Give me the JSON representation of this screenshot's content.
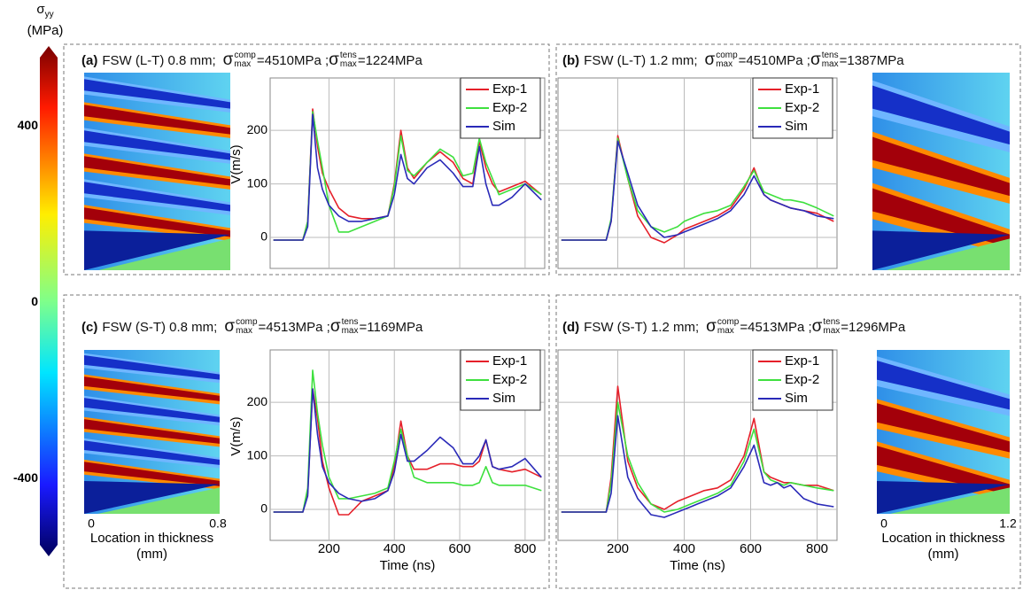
{
  "colorbar": {
    "symbol": "σ",
    "subscript": "yy",
    "unit": "(MPa)",
    "lim": [
      -550,
      555
    ],
    "ticks": [
      400,
      0,
      -400
    ]
  },
  "symbols": {
    "sigma": "σ",
    "comp": "comp",
    "tens": "tens",
    "max": "max"
  },
  "chart_data": [
    {
      "type": "line",
      "panel_label": "(a)",
      "title": "FSW (L-T) 0.8 mm;",
      "comp_value": "=4510MPa ;",
      "tens_value": "=1224MPa",
      "ylabel": "V(m/s)",
      "show_xtick_labels": false,
      "show_ytick_labels": true,
      "grid": true,
      "x": [
        30,
        120,
        135,
        150,
        165,
        180,
        200,
        230,
        260,
        300,
        340,
        380,
        400,
        420,
        440,
        460,
        500,
        540,
        580,
        610,
        640,
        660,
        680,
        700,
        720,
        760,
        800,
        850
      ],
      "xlim": [
        20,
        860
      ],
      "xticks": [
        200,
        400,
        600,
        800
      ],
      "ylim": [
        -58,
        298
      ],
      "yticks": [
        0,
        100,
        200
      ],
      "series": [
        {
          "name": "Exp-1",
          "color": "#e5202a",
          "values": [
            -5,
            -5,
            30,
            240,
            170,
            120,
            90,
            55,
            40,
            35,
            35,
            40,
            100,
            200,
            130,
            110,
            140,
            160,
            140,
            110,
            100,
            180,
            130,
            100,
            85,
            95,
            105,
            80
          ]
        },
        {
          "name": "Exp-2",
          "color": "#3ee03e",
          "values": [
            -5,
            -5,
            30,
            235,
            180,
            130,
            60,
            10,
            10,
            20,
            30,
            40,
            95,
            190,
            125,
            115,
            140,
            165,
            150,
            115,
            120,
            185,
            140,
            110,
            80,
            90,
            100,
            80
          ]
        },
        {
          "name": "Sim",
          "color": "#2a2ab8",
          "values": [
            -5,
            -5,
            20,
            230,
            130,
            90,
            60,
            40,
            30,
            30,
            35,
            40,
            80,
            155,
            110,
            100,
            130,
            145,
            120,
            95,
            95,
            170,
            100,
            60,
            60,
            75,
            100,
            70
          ]
        }
      ]
    },
    {
      "type": "line",
      "panel_label": "(b)",
      "title": "FSW (L-T) 1.2 mm;",
      "comp_value": "=4510MPa ;",
      "tens_value": "=1387MPa",
      "show_xtick_labels": false,
      "show_ytick_labels": false,
      "grid": true,
      "x": [
        30,
        120,
        135,
        150,
        165,
        180,
        200,
        230,
        260,
        300,
        340,
        380,
        400,
        420,
        440,
        460,
        500,
        540,
        580,
        610,
        640,
        660,
        680,
        700,
        720,
        760,
        800,
        850
      ],
      "xlim": [
        20,
        860
      ],
      "xticks": [
        200,
        400,
        600,
        800
      ],
      "ylim": [
        -58,
        298
      ],
      "yticks": [
        0,
        100,
        200
      ],
      "series": [
        {
          "name": "Exp-1",
          "color": "#e5202a",
          "values": [
            -5,
            -5,
            -5,
            -5,
            -5,
            30,
            190,
            110,
            40,
            0,
            -10,
            5,
            15,
            20,
            25,
            30,
            40,
            55,
            90,
            130,
            80,
            70,
            65,
            60,
            55,
            50,
            45,
            30
          ]
        },
        {
          "name": "Exp-2",
          "color": "#3ee03e",
          "values": [
            -5,
            -5,
            -5,
            -5,
            -5,
            35,
            185,
            110,
            50,
            20,
            10,
            20,
            30,
            35,
            40,
            45,
            50,
            60,
            95,
            125,
            85,
            80,
            75,
            70,
            70,
            65,
            55,
            40
          ]
        },
        {
          "name": "Sim",
          "color": "#2a2ab8",
          "values": [
            -5,
            -5,
            -5,
            -5,
            -5,
            30,
            180,
            120,
            60,
            20,
            0,
            5,
            10,
            15,
            20,
            25,
            35,
            50,
            80,
            115,
            80,
            70,
            65,
            60,
            55,
            50,
            40,
            35
          ]
        }
      ]
    },
    {
      "type": "line",
      "panel_label": "(c)",
      "title": "FSW (S-T) 0.8 mm;",
      "comp_value": "=4513MPa ;",
      "tens_value": "=1169MPa",
      "ylabel": "V(m/s)",
      "xlabel": "Time (ns)",
      "show_xtick_labels": true,
      "show_ytick_labels": true,
      "grid": true,
      "contour_xticks": [
        0,
        0.8
      ],
      "contour_xlabel": "Location in thickness",
      "contour_xunit": "(mm)",
      "x": [
        30,
        120,
        135,
        150,
        165,
        180,
        200,
        230,
        260,
        300,
        340,
        380,
        400,
        420,
        440,
        460,
        500,
        540,
        580,
        610,
        640,
        660,
        680,
        700,
        720,
        760,
        800,
        850
      ],
      "xlim": [
        20,
        860
      ],
      "xticks": [
        200,
        400,
        600,
        800
      ],
      "ylim": [
        -58,
        298
      ],
      "yticks": [
        0,
        100,
        200
      ],
      "series": [
        {
          "name": "Exp-1",
          "color": "#e5202a",
          "values": [
            -5,
            -5,
            30,
            225,
            170,
            90,
            40,
            -10,
            -10,
            15,
            25,
            35,
            80,
            165,
            100,
            75,
            75,
            85,
            85,
            80,
            80,
            90,
            130,
            80,
            75,
            70,
            75,
            60
          ]
        },
        {
          "name": "Exp-2",
          "color": "#3ee03e",
          "values": [
            -5,
            -5,
            40,
            260,
            180,
            120,
            60,
            20,
            20,
            25,
            30,
            40,
            90,
            150,
            100,
            60,
            50,
            50,
            50,
            45,
            45,
            50,
            80,
            50,
            45,
            45,
            45,
            35
          ]
        },
        {
          "name": "Sim",
          "color": "#2a2ab8",
          "values": [
            -5,
            -5,
            25,
            225,
            140,
            80,
            50,
            30,
            20,
            15,
            20,
            35,
            70,
            140,
            90,
            90,
            110,
            135,
            115,
            85,
            85,
            100,
            130,
            80,
            75,
            80,
            95,
            60
          ]
        }
      ]
    },
    {
      "type": "line",
      "panel_label": "(d)",
      "title": "FSW (S-T) 1.2 mm;",
      "comp_value": "=4513MPa ;",
      "tens_value": "=1296MPa",
      "xlabel": "Time (ns)",
      "show_xtick_labels": true,
      "show_ytick_labels": false,
      "grid": true,
      "contour_xticks": [
        0,
        1.2
      ],
      "contour_xlabel": "Location in thickness",
      "contour_xunit": "(mm)",
      "x": [
        30,
        120,
        135,
        150,
        165,
        180,
        200,
        230,
        260,
        300,
        340,
        380,
        400,
        420,
        440,
        460,
        500,
        540,
        580,
        610,
        640,
        660,
        680,
        700,
        720,
        760,
        800,
        850
      ],
      "xlim": [
        20,
        860
      ],
      "xticks": [
        200,
        400,
        600,
        800
      ],
      "ylim": [
        -58,
        298
      ],
      "yticks": [
        0,
        100,
        200
      ],
      "series": [
        {
          "name": "Exp-1",
          "color": "#e5202a",
          "values": [
            -5,
            -5,
            -5,
            -5,
            -5,
            60,
            230,
            90,
            40,
            10,
            0,
            15,
            20,
            25,
            30,
            35,
            40,
            55,
            100,
            170,
            70,
            60,
            55,
            50,
            50,
            45,
            45,
            35
          ]
        },
        {
          "name": "Exp-2",
          "color": "#3ee03e",
          "values": [
            -5,
            -5,
            -5,
            -5,
            -5,
            50,
            200,
            100,
            50,
            10,
            -5,
            0,
            5,
            10,
            15,
            20,
            30,
            45,
            90,
            150,
            70,
            55,
            50,
            45,
            50,
            45,
            40,
            35
          ]
        },
        {
          "name": "Sim",
          "color": "#2a2ab8",
          "values": [
            -5,
            -5,
            -5,
            -5,
            -5,
            30,
            175,
            60,
            20,
            -10,
            -15,
            -5,
            0,
            5,
            10,
            15,
            25,
            40,
            80,
            120,
            50,
            45,
            50,
            40,
            45,
            20,
            10,
            5
          ]
        }
      ]
    }
  ]
}
